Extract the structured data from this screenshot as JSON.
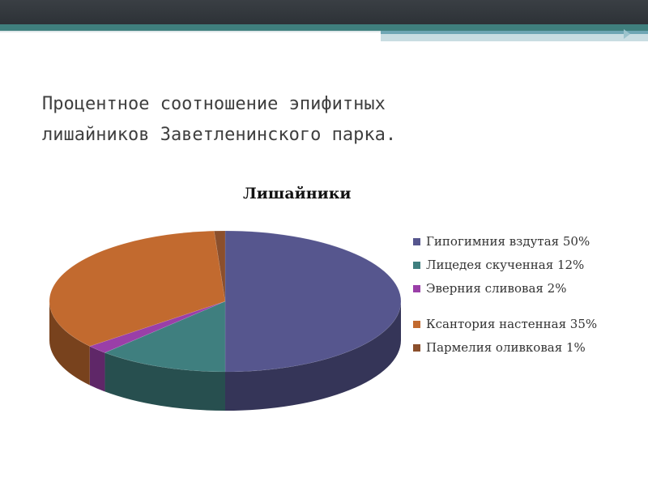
{
  "slide": {
    "title_line1": "Процентное соотношение эпифитных",
    "title_line2": "лишайников Заветленинского парка."
  },
  "chart_data": {
    "type": "pie",
    "title": "Лишайники",
    "categories": [
      "Гипогимния вздутая 50%",
      "Лицедея скученная 12%",
      "Эверния сливовая 2%",
      "Ксантория настенная 35%",
      "Пармелия оливковая 1%"
    ],
    "values": [
      50,
      12,
      2,
      35,
      1
    ],
    "colors": [
      "#56568e",
      "#3f7f7f",
      "#9a3fa8",
      "#c26a2f",
      "#8b4f2c"
    ],
    "legend": "right"
  }
}
